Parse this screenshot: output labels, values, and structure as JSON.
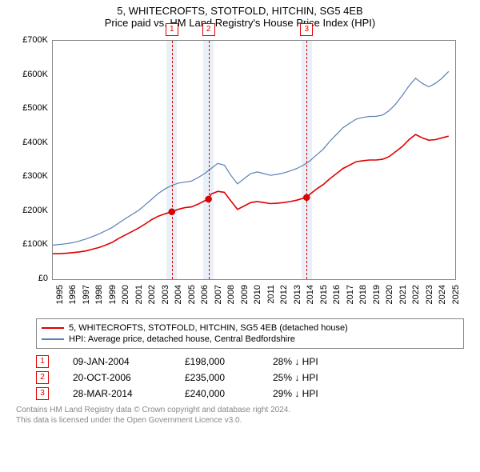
{
  "title": "5, WHITECROFTS, STOTFOLD, HITCHIN, SG5 4EB",
  "subtitle": "Price paid vs. HM Land Registry's House Price Index (HPI)",
  "chart": {
    "type": "line",
    "background_color": "#ffffff",
    "grid_color": "#888888",
    "xlim": [
      1995,
      2025.5
    ],
    "ylim": [
      0,
      700000
    ],
    "ytick_step": 100000,
    "ylabels": [
      "£0",
      "£100K",
      "£200K",
      "£300K",
      "£400K",
      "£500K",
      "£600K",
      "£700K"
    ],
    "xticks": [
      1995,
      1996,
      1997,
      1998,
      1999,
      2000,
      2001,
      2002,
      2003,
      2004,
      2005,
      2006,
      2007,
      2008,
      2009,
      2010,
      2011,
      2012,
      2013,
      2014,
      2015,
      2016,
      2017,
      2018,
      2019,
      2020,
      2021,
      2022,
      2023,
      2024,
      2025
    ],
    "band_color": "#eaf0f8",
    "marker_color": "#e00000",
    "label_fontsize": 11,
    "series": [
      {
        "id": "property",
        "label": "5, WHITECROFTS, STOTFOLD, HITCHIN, SG5 4EB (detached house)",
        "color": "#e00000",
        "line_width": 1.6,
        "data": [
          [
            1995.0,
            75000
          ],
          [
            1995.5,
            75000
          ],
          [
            1996.0,
            76000
          ],
          [
            1996.5,
            78000
          ],
          [
            1997.0,
            80000
          ],
          [
            1997.5,
            83000
          ],
          [
            1998.0,
            88000
          ],
          [
            1998.5,
            93000
          ],
          [
            1999.0,
            100000
          ],
          [
            1999.5,
            108000
          ],
          [
            2000.0,
            120000
          ],
          [
            2000.5,
            130000
          ],
          [
            2001.0,
            140000
          ],
          [
            2001.5,
            150000
          ],
          [
            2002.0,
            162000
          ],
          [
            2002.5,
            175000
          ],
          [
            2003.0,
            185000
          ],
          [
            2003.5,
            192000
          ],
          [
            2004.02,
            198000
          ],
          [
            2004.5,
            205000
          ],
          [
            2005.0,
            210000
          ],
          [
            2005.5,
            212000
          ],
          [
            2006.0,
            220000
          ],
          [
            2006.5,
            230000
          ],
          [
            2006.8,
            235000
          ],
          [
            2007.0,
            250000
          ],
          [
            2007.5,
            258000
          ],
          [
            2008.0,
            255000
          ],
          [
            2008.5,
            230000
          ],
          [
            2009.0,
            205000
          ],
          [
            2009.5,
            215000
          ],
          [
            2010.0,
            225000
          ],
          [
            2010.5,
            228000
          ],
          [
            2011.0,
            225000
          ],
          [
            2011.5,
            222000
          ],
          [
            2012.0,
            223000
          ],
          [
            2012.5,
            225000
          ],
          [
            2013.0,
            228000
          ],
          [
            2013.5,
            232000
          ],
          [
            2014.0,
            238000
          ],
          [
            2014.24,
            240000
          ],
          [
            2014.5,
            250000
          ],
          [
            2015.0,
            265000
          ],
          [
            2015.5,
            278000
          ],
          [
            2016.0,
            295000
          ],
          [
            2016.5,
            310000
          ],
          [
            2017.0,
            325000
          ],
          [
            2017.5,
            335000
          ],
          [
            2018.0,
            345000
          ],
          [
            2018.5,
            348000
          ],
          [
            2019.0,
            350000
          ],
          [
            2019.5,
            350000
          ],
          [
            2020.0,
            352000
          ],
          [
            2020.5,
            360000
          ],
          [
            2021.0,
            375000
          ],
          [
            2021.5,
            390000
          ],
          [
            2022.0,
            410000
          ],
          [
            2022.5,
            425000
          ],
          [
            2023.0,
            415000
          ],
          [
            2023.5,
            408000
          ],
          [
            2024.0,
            410000
          ],
          [
            2024.5,
            415000
          ],
          [
            2025.0,
            420000
          ]
        ]
      },
      {
        "id": "hpi",
        "label": "HPI: Average price, detached house, Central Bedfordshire",
        "color": "#5b7fb8",
        "line_width": 1.2,
        "data": [
          [
            1995.0,
            100000
          ],
          [
            1995.5,
            102000
          ],
          [
            1996.0,
            104000
          ],
          [
            1996.5,
            107000
          ],
          [
            1997.0,
            112000
          ],
          [
            1997.5,
            118000
          ],
          [
            1998.0,
            125000
          ],
          [
            1998.5,
            133000
          ],
          [
            1999.0,
            142000
          ],
          [
            1999.5,
            152000
          ],
          [
            2000.0,
            165000
          ],
          [
            2000.5,
            178000
          ],
          [
            2001.0,
            190000
          ],
          [
            2001.5,
            202000
          ],
          [
            2002.0,
            218000
          ],
          [
            2002.5,
            235000
          ],
          [
            2003.0,
            252000
          ],
          [
            2003.5,
            265000
          ],
          [
            2004.0,
            275000
          ],
          [
            2004.5,
            282000
          ],
          [
            2005.0,
            285000
          ],
          [
            2005.5,
            288000
          ],
          [
            2006.0,
            298000
          ],
          [
            2006.5,
            310000
          ],
          [
            2007.0,
            325000
          ],
          [
            2007.5,
            340000
          ],
          [
            2008.0,
            335000
          ],
          [
            2008.5,
            305000
          ],
          [
            2009.0,
            280000
          ],
          [
            2009.5,
            295000
          ],
          [
            2010.0,
            310000
          ],
          [
            2010.5,
            315000
          ],
          [
            2011.0,
            310000
          ],
          [
            2011.5,
            305000
          ],
          [
            2012.0,
            308000
          ],
          [
            2012.5,
            312000
          ],
          [
            2013.0,
            318000
          ],
          [
            2013.5,
            325000
          ],
          [
            2014.0,
            335000
          ],
          [
            2014.5,
            348000
          ],
          [
            2015.0,
            365000
          ],
          [
            2015.5,
            382000
          ],
          [
            2016.0,
            405000
          ],
          [
            2016.5,
            425000
          ],
          [
            2017.0,
            445000
          ],
          [
            2017.5,
            458000
          ],
          [
            2018.0,
            470000
          ],
          [
            2018.5,
            475000
          ],
          [
            2019.0,
            478000
          ],
          [
            2019.5,
            478000
          ],
          [
            2020.0,
            482000
          ],
          [
            2020.5,
            495000
          ],
          [
            2021.0,
            515000
          ],
          [
            2021.5,
            540000
          ],
          [
            2022.0,
            568000
          ],
          [
            2022.5,
            590000
          ],
          [
            2023.0,
            575000
          ],
          [
            2023.5,
            565000
          ],
          [
            2024.0,
            575000
          ],
          [
            2024.5,
            590000
          ],
          [
            2025.0,
            610000
          ]
        ]
      }
    ],
    "sale_markers": [
      {
        "n": "1",
        "x": 2004.02,
        "y": 198000
      },
      {
        "n": "2",
        "x": 2006.8,
        "y": 235000
      },
      {
        "n": "3",
        "x": 2014.24,
        "y": 240000
      }
    ]
  },
  "legend": {
    "items": [
      {
        "color": "#e00000",
        "label": "5, WHITECROFTS, STOTFOLD, HITCHIN, SG5 4EB (detached house)"
      },
      {
        "color": "#5b7fb8",
        "label": "HPI: Average price, detached house, Central Bedfordshire"
      }
    ]
  },
  "sales": [
    {
      "n": "1",
      "date": "09-JAN-2004",
      "price": "£198,000",
      "delta": "28% ↓ HPI"
    },
    {
      "n": "2",
      "date": "20-OCT-2006",
      "price": "£235,000",
      "delta": "25% ↓ HPI"
    },
    {
      "n": "3",
      "date": "28-MAR-2014",
      "price": "£240,000",
      "delta": "29% ↓ HPI"
    }
  ],
  "footer": {
    "line1": "Contains HM Land Registry data © Crown copyright and database right 2024.",
    "line2": "This data is licensed under the Open Government Licence v3.0."
  }
}
